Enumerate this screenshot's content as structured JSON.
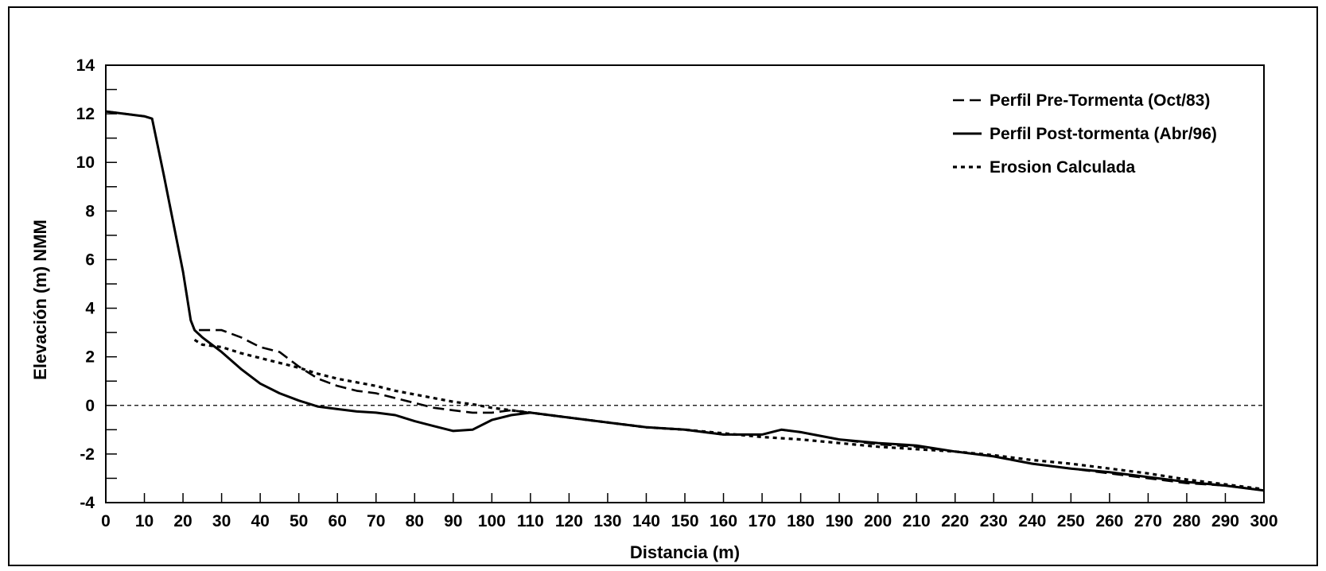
{
  "chart_data": {
    "type": "line",
    "title": "",
    "xlabel": "Distancia (m)",
    "ylabel": "Elevación (m) NMM",
    "xlim": [
      0,
      300
    ],
    "ylim": [
      -4,
      14
    ],
    "xticks": [
      0,
      10,
      20,
      30,
      40,
      50,
      60,
      70,
      80,
      90,
      100,
      110,
      120,
      130,
      140,
      150,
      160,
      170,
      180,
      190,
      200,
      210,
      220,
      230,
      240,
      250,
      260,
      270,
      280,
      290,
      300
    ],
    "yticks": [
      -4,
      -2,
      0,
      2,
      4,
      6,
      8,
      10,
      12,
      14
    ],
    "grid": false,
    "reference_line": {
      "y": 0,
      "style": "dashed"
    },
    "legend_position": "top-right",
    "series": [
      {
        "name": "Perfil Pre-Tormenta (Oct/83)",
        "style": "dashed",
        "x": [
          0,
          10,
          12,
          15,
          20,
          22,
          23,
          25,
          30,
          35,
          40,
          45,
          50,
          55,
          60,
          65,
          70,
          75,
          80,
          85,
          90,
          95,
          100,
          105,
          110,
          120,
          130,
          140,
          150,
          160,
          170,
          175,
          180,
          190,
          200,
          210,
          220,
          230,
          240,
          250,
          260,
          270,
          280,
          290,
          300
        ],
        "y": [
          12.1,
          11.9,
          11.8,
          9.5,
          5.5,
          3.5,
          3.1,
          3.1,
          3.1,
          2.8,
          2.4,
          2.2,
          1.6,
          1.1,
          0.8,
          0.6,
          0.5,
          0.3,
          0.1,
          -0.1,
          -0.2,
          -0.3,
          -0.3,
          -0.2,
          -0.3,
          -0.5,
          -0.7,
          -0.9,
          -1.0,
          -1.2,
          -1.2,
          -1.0,
          -1.1,
          -1.4,
          -1.6,
          -1.7,
          -1.9,
          -2.1,
          -2.4,
          -2.6,
          -2.8,
          -3.0,
          -3.2,
          -3.3,
          -3.5
        ]
      },
      {
        "name": "Perfil Post-tormenta (Abr/96)",
        "style": "solid",
        "x": [
          0,
          10,
          12,
          15,
          20,
          22,
          23,
          25,
          30,
          35,
          40,
          45,
          50,
          55,
          60,
          65,
          70,
          75,
          80,
          85,
          90,
          95,
          100,
          105,
          110,
          120,
          130,
          140,
          150,
          160,
          170,
          175,
          180,
          190,
          200,
          210,
          220,
          230,
          240,
          250,
          260,
          270,
          280,
          290,
          300
        ],
        "y": [
          12.1,
          11.9,
          11.8,
          9.5,
          5.5,
          3.5,
          3.1,
          2.8,
          2.2,
          1.5,
          0.9,
          0.5,
          0.2,
          -0.05,
          -0.15,
          -0.25,
          -0.3,
          -0.4,
          -0.65,
          -0.85,
          -1.05,
          -1.0,
          -0.6,
          -0.4,
          -0.3,
          -0.5,
          -0.7,
          -0.9,
          -1.0,
          -1.2,
          -1.2,
          -1.0,
          -1.1,
          -1.4,
          -1.55,
          -1.65,
          -1.9,
          -2.1,
          -2.4,
          -2.6,
          -2.75,
          -2.95,
          -3.15,
          -3.3,
          -3.5
        ]
      },
      {
        "name": "Erosion Calculada",
        "style": "dotted",
        "x": [
          23,
          25,
          30,
          35,
          40,
          45,
          50,
          55,
          60,
          65,
          70,
          75,
          80,
          85,
          90,
          95,
          100,
          105,
          110,
          120,
          130,
          140,
          150,
          160,
          170,
          180,
          190,
          200,
          210,
          220,
          230,
          240,
          250,
          260,
          270,
          280,
          290,
          300
        ],
        "y": [
          2.7,
          2.5,
          2.4,
          2.15,
          1.95,
          1.75,
          1.55,
          1.3,
          1.1,
          0.95,
          0.8,
          0.6,
          0.45,
          0.3,
          0.15,
          0.05,
          -0.1,
          -0.2,
          -0.3,
          -0.5,
          -0.7,
          -0.9,
          -1.0,
          -1.15,
          -1.3,
          -1.4,
          -1.55,
          -1.7,
          -1.8,
          -1.9,
          -2.05,
          -2.25,
          -2.4,
          -2.6,
          -2.8,
          -3.05,
          -3.25,
          -3.45
        ]
      }
    ]
  }
}
